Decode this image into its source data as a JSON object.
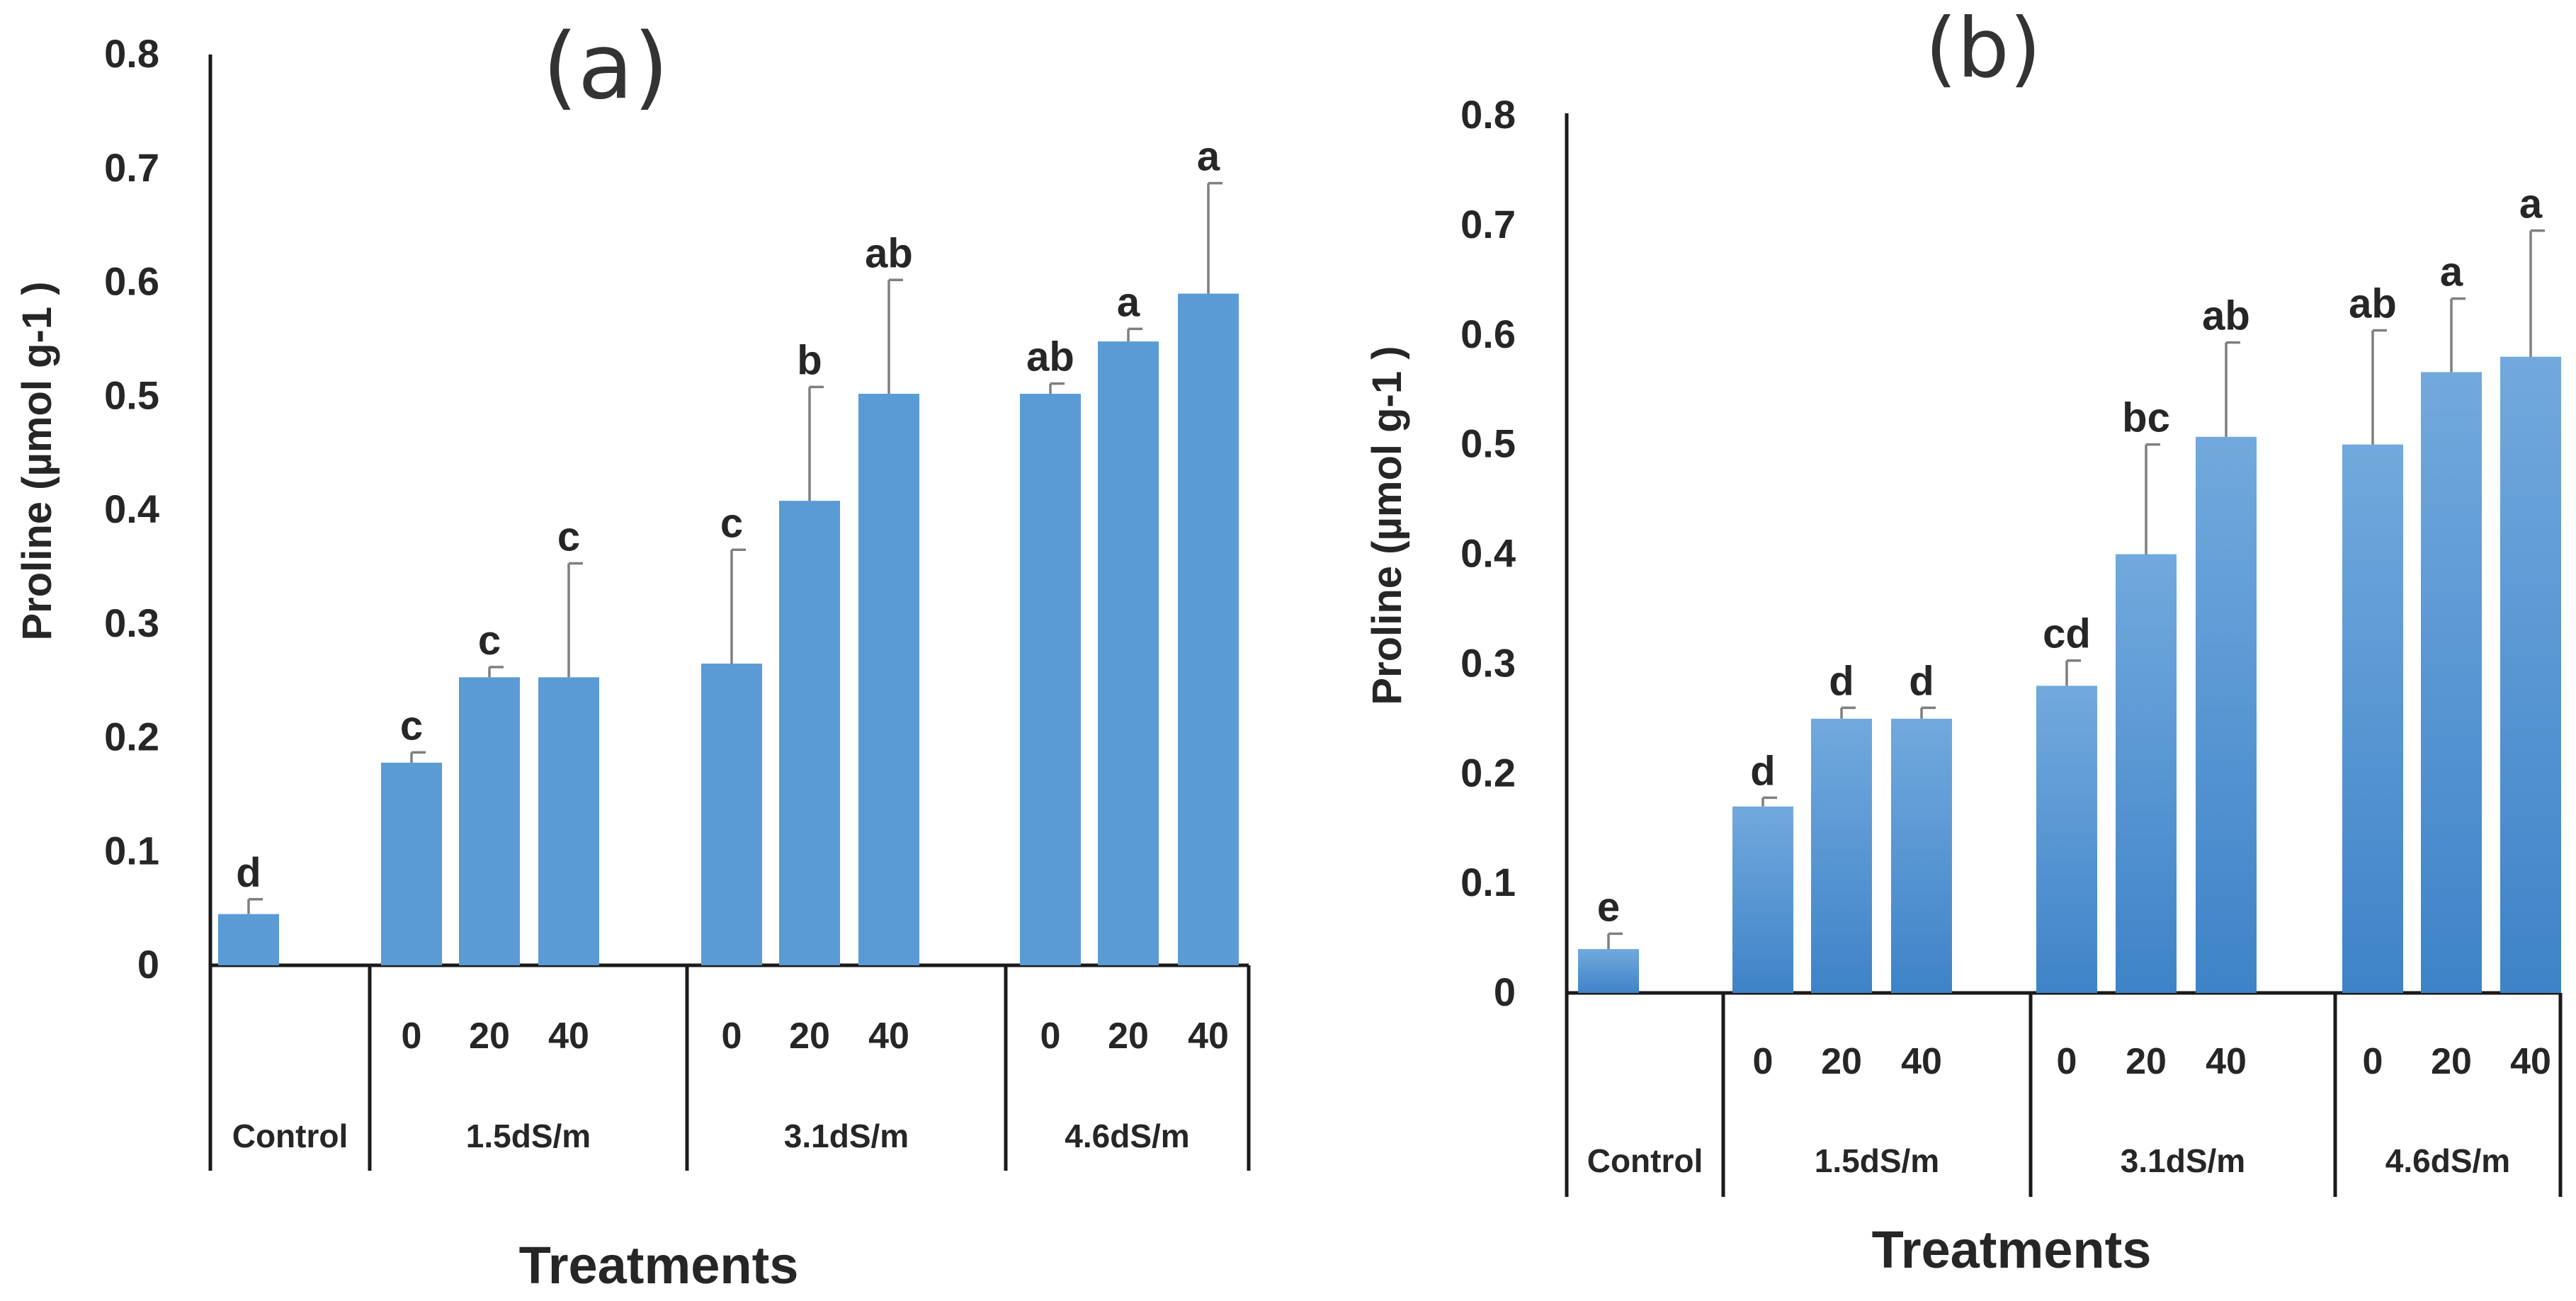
{
  "chart_data": [
    {
      "type": "bar",
      "title": "(a)",
      "xlabel": "Treatments",
      "ylabel": "Proline (µmol g-1 )",
      "ylim": [
        0,
        0.8
      ],
      "yticks": [
        "0",
        "0.1",
        "0.2",
        "0.3",
        "0.4",
        "0.5",
        "0.6",
        "0.7",
        "0.8"
      ],
      "groups": [
        {
          "name": "Control",
          "bars": [
            {
              "label": "",
              "value": 0.045,
              "error": 0.013,
              "letter": "d"
            }
          ]
        },
        {
          "name": "1.5dS/m",
          "bars": [
            {
              "label": "0",
              "value": 0.178,
              "error": 0.009,
              "letter": "c"
            },
            {
              "label": "20",
              "value": 0.253,
              "error": 0.009,
              "letter": "c"
            },
            {
              "label": "40",
              "value": 0.253,
              "error": 0.1,
              "letter": "c"
            }
          ]
        },
        {
          "name": "3.1dS/m",
          "bars": [
            {
              "label": "0",
              "value": 0.265,
              "error": 0.1,
              "letter": "c"
            },
            {
              "label": "20",
              "value": 0.408,
              "error": 0.1,
              "letter": "b"
            },
            {
              "label": "40",
              "value": 0.502,
              "error": 0.1,
              "letter": "ab"
            }
          ]
        },
        {
          "name": "4.6dS/m",
          "bars": [
            {
              "label": "0",
              "value": 0.502,
              "error": 0.009,
              "letter": "ab"
            },
            {
              "label": "20",
              "value": 0.548,
              "error": 0.011,
              "letter": "a"
            },
            {
              "label": "40",
              "value": 0.59,
              "error": 0.097,
              "letter": "a"
            }
          ]
        }
      ]
    },
    {
      "type": "bar",
      "title": "(b)",
      "xlabel": "Treatments",
      "ylabel": "Proline (µmol g-1 )",
      "ylim": [
        0,
        0.8
      ],
      "yticks": [
        "0",
        "0.1",
        "0.2",
        "0.3",
        "0.4",
        "0.5",
        "0.6",
        "0.7",
        "0.8"
      ],
      "groups": [
        {
          "name": "Control",
          "bars": [
            {
              "label": "",
              "value": 0.04,
              "error": 0.014,
              "letter": "e"
            }
          ]
        },
        {
          "name": "1.5dS/m",
          "bars": [
            {
              "label": "0",
              "value": 0.17,
              "error": 0.008,
              "letter": "d"
            },
            {
              "label": "20",
              "value": 0.25,
              "error": 0.01,
              "letter": "d"
            },
            {
              "label": "40",
              "value": 0.25,
              "error": 0.01,
              "letter": "d"
            }
          ]
        },
        {
          "name": "3.1dS/m",
          "bars": [
            {
              "label": "0",
              "value": 0.28,
              "error": 0.023,
              "letter": "cd"
            },
            {
              "label": "20",
              "value": 0.4,
              "error": 0.1,
              "letter": "bc"
            },
            {
              "label": "40",
              "value": 0.507,
              "error": 0.086,
              "letter": "ab"
            }
          ]
        },
        {
          "name": "4.6dS/m",
          "bars": [
            {
              "label": "0",
              "value": 0.5,
              "error": 0.104,
              "letter": "ab"
            },
            {
              "label": "20",
              "value": 0.566,
              "error": 0.067,
              "letter": "a"
            },
            {
              "label": "40",
              "value": 0.58,
              "error": 0.115,
              "letter": "a"
            }
          ]
        }
      ]
    }
  ],
  "colors": {
    "bar_a": "#5b9bd5",
    "bar_b_top": "#72a9dd",
    "bar_b_bottom": "#3e83c8",
    "error": "#7f7f7f",
    "axis": "#1a1a1a"
  }
}
